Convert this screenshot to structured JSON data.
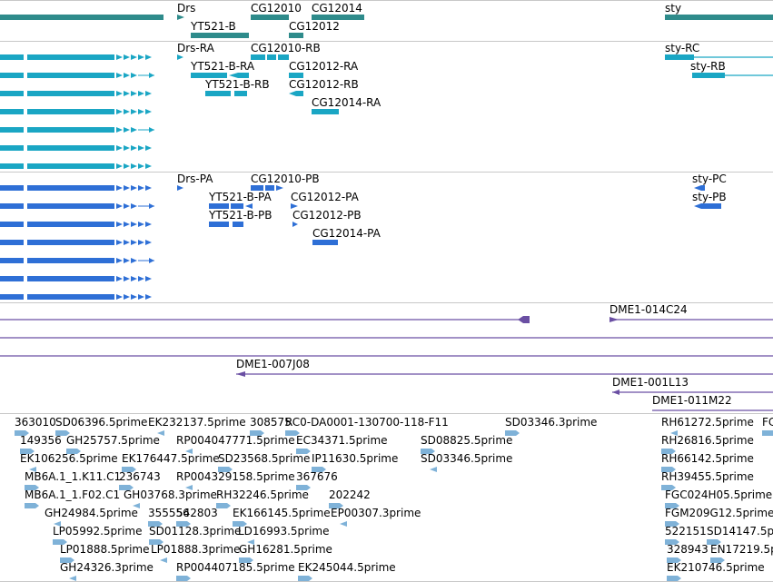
{
  "colors": {
    "gene": "#2e8b8b",
    "transcript": "#1aa6c4",
    "protein": "#2e6fd6",
    "clone": "#6a4fa3",
    "est": "#7fb2d8",
    "separator": "#c8c8c8"
  },
  "tracks": {
    "gene": {
      "labels": [
        "Drs",
        "CG12010",
        "CG12014",
        "YT521-B",
        "CG12012",
        "sty"
      ]
    },
    "transcript": {
      "labels": [
        "Drs-RA",
        "CG12010-RB",
        "YT521-B-RA",
        "CG12012-RA",
        "YT521-B-RB",
        "CG12012-RB",
        "CG12014-RA",
        "sty-RC",
        "sty-RB"
      ]
    },
    "protein": {
      "labels": [
        "Drs-PA",
        "CG12010-PB",
        "YT521-B-PA",
        "CG12012-PA",
        "YT521-B-PB",
        "CG12012-PB",
        "CG12014-PA",
        "sty-PC",
        "sty-PB"
      ]
    },
    "clone": {
      "labels": [
        "DME1-014C24",
        "DME1-007J08",
        "DME1-001L13",
        "DME1-011M22"
      ]
    },
    "est": {
      "labels": [
        "363010",
        "SD06396.5prime",
        "EK232137.5prime",
        "308575",
        "RC0-DA0001-130700-118-F11",
        "SD03346.3prime",
        "RH61272.5prime",
        "FC",
        "149356",
        "GH25757.5prime",
        "RP004047771.5prime",
        "EC34371.5prime",
        "SD08825.5prime",
        "RH26816.5prime",
        "EK106256.5prime",
        "EK176447.5prime",
        "SD23568.5prime",
        "IP11630.5prime",
        "SD03346.5prime",
        "RH66142.5prime",
        "MB6A.1_1.K11.C1",
        "236743",
        "RP004329158.5prime",
        "367676",
        "RH39455.5prime",
        "MB6A.1_1.F02.C1",
        "GH03768.3prime",
        "RH32246.5prime",
        "202242",
        "FGC024H05.5prime",
        "GH24984.5prime",
        "355556",
        "542803",
        "EK166145.5prime",
        "EP00307.3prime",
        "FGM209G12.5prime",
        "LP05992.5prime",
        "SD01128.3prime",
        "LD16993.5prime",
        "522151",
        "SD14147.5p",
        "LP01888.5prime",
        "LP01888.3prime",
        "GH16281.5prime",
        "328943",
        "EN17219.5p",
        "GH24326.3prime",
        "RP004407185.5prime",
        "EK245044.5prime",
        "EK210746.5prime"
      ]
    }
  }
}
